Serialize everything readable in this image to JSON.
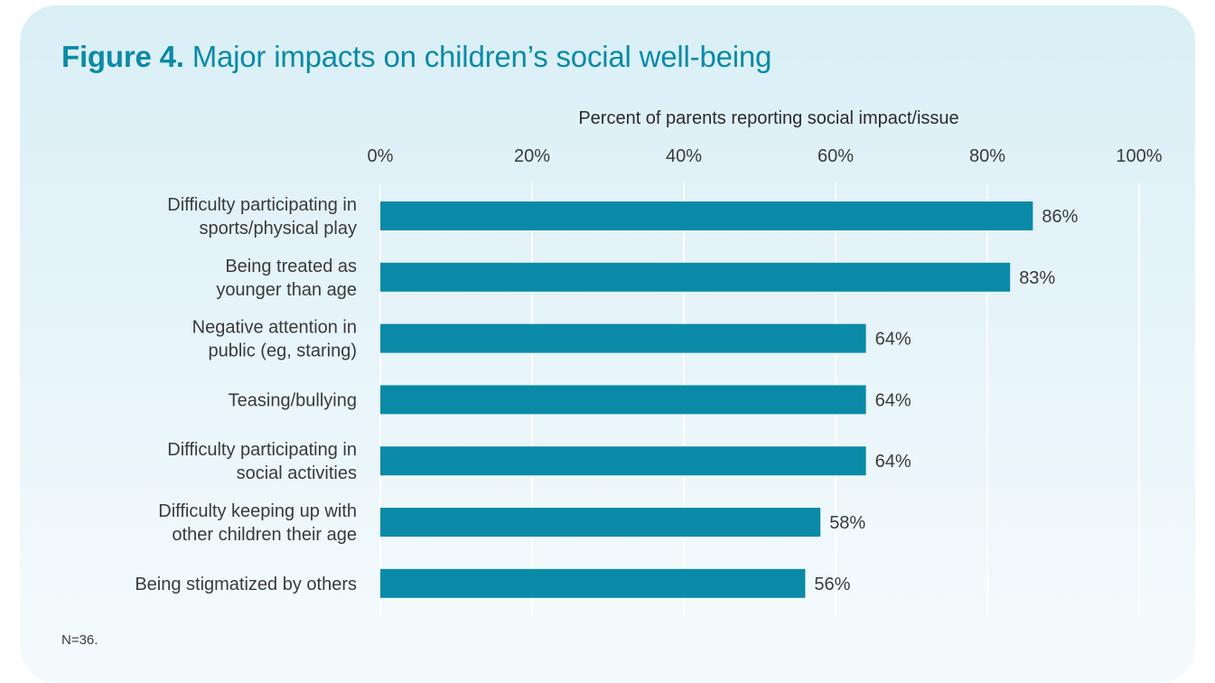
{
  "figure": {
    "label": "Figure 4.",
    "title": "Major impacts on children’s social well-being",
    "note": "N=36."
  },
  "chart_data": {
    "type": "bar",
    "orientation": "horizontal",
    "title": "Figure 4. Major impacts on children’s social well-being",
    "xlabel": "Percent of parents reporting social impact/issue",
    "ylabel": "",
    "xlim": [
      0,
      100
    ],
    "x_ticks": [
      "0%",
      "20%",
      "40%",
      "60%",
      "80%",
      "100%"
    ],
    "grid": true,
    "categories": [
      [
        "Difficulty participating in",
        "sports/physical play"
      ],
      [
        "Being treated as",
        "younger than age"
      ],
      [
        "Negative attention in",
        "public (eg, staring)"
      ],
      [
        "Teasing/bullying"
      ],
      [
        "Difficulty participating in",
        "social activities"
      ],
      [
        "Difficulty keeping up with",
        "other children their age"
      ],
      [
        "Being stigmatized by others"
      ]
    ],
    "values": [
      86,
      83,
      64,
      64,
      64,
      58,
      56
    ],
    "value_labels": [
      "86%",
      "83%",
      "64%",
      "64%",
      "64%",
      "58%",
      "56%"
    ],
    "bar_color": "#0b8aa8",
    "grid_color": "#ffffff"
  }
}
